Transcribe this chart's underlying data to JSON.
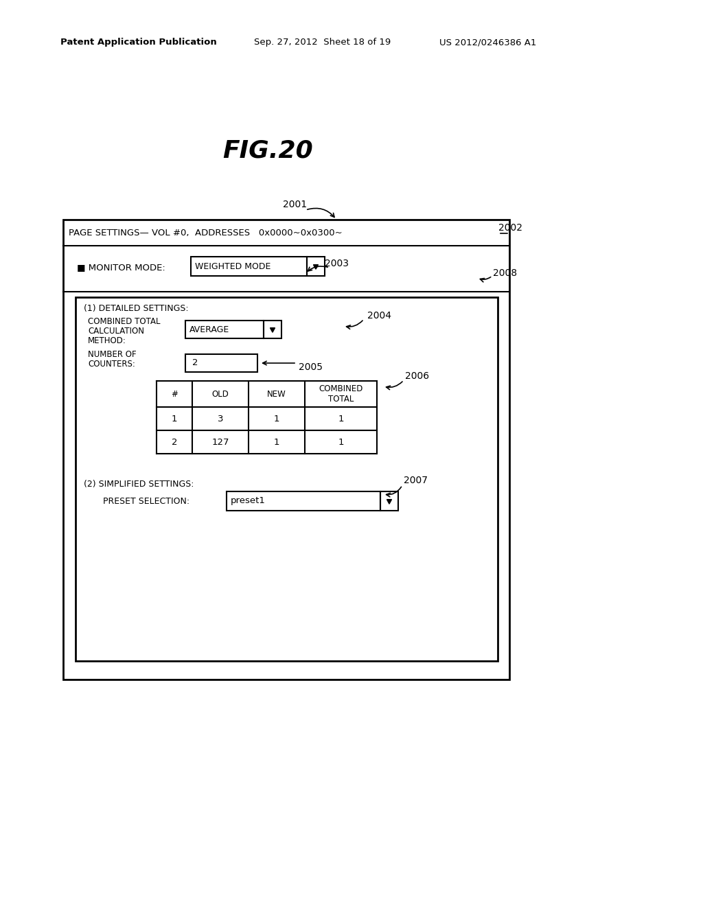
{
  "bg_color": "#ffffff",
  "header_left": "Patent Application Publication",
  "header_mid": "Sep. 27, 2012  Sheet 18 of 19",
  "header_right": "US 2012/0246386 A1",
  "fig_title": "FIG.20",
  "page_settings_label": "PAGE SETTINGS— VOL #0,  ADDRESSES   0x0000~0x0300~",
  "monitor_mode_label": "■ MONITOR MODE:",
  "monitor_mode_value": "WEIGHTED MODE",
  "label_2001": "2001",
  "label_2002": "2002",
  "label_2003": "2003",
  "label_2004": "2004",
  "label_2005": "2005",
  "label_2006": "2006",
  "label_2007": "2007",
  "label_2008": "2008",
  "detailed_settings_label": "(1) DETAILED SETTINGS:",
  "combined_total_line1": "COMBINED TOTAL",
  "combined_total_line2": "CALCULATION",
  "combined_total_line3": "METHOD:",
  "average_value": "AVERAGE",
  "number_of_counters_line1": "NUMBER OF",
  "number_of_counters_line2": "COUNTERS:",
  "counters_value": "2",
  "table_headers": [
    "#",
    "OLD",
    "NEW",
    "COMBINED\nTOTAL"
  ],
  "table_row1": [
    "1",
    "3",
    "1",
    "1"
  ],
  "table_row2": [
    "2",
    "127",
    "1",
    "1"
  ],
  "simplified_settings_label": "(2) SIMPLIFIED SETTINGS:",
  "preset_selection_label": "PRESET SELECTION:",
  "preset_value": "preset1"
}
